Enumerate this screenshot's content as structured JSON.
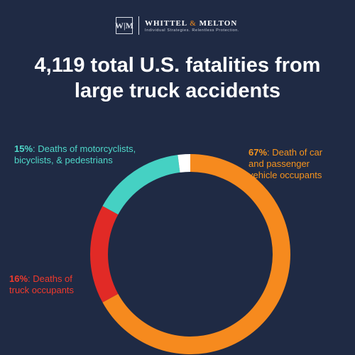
{
  "logo": {
    "mark": "W|M",
    "name_left": "WHITTEL",
    "name_amp": "&",
    "name_right": "MELTON",
    "tagline": "Individual Strategies. Relentless Protection."
  },
  "title_line1": "4,119 total U.S. fatalities from",
  "title_line2": "large truck accidents",
  "chart_data": {
    "type": "pie",
    "title": "4,119 total U.S. fatalities from large truck accidents",
    "total": 4119,
    "unit": "%",
    "donut": true,
    "slices": [
      {
        "label": "Death of car and passenger vehicle occupants",
        "value": 67,
        "color": "#f68a1e"
      },
      {
        "label": "Deaths of truck occupants",
        "value": 16,
        "color": "#e12a26"
      },
      {
        "label": "Deaths of motorcyclists, bicyclists, & pedestrians",
        "value": 15,
        "color": "#45d1c3"
      },
      {
        "label": "",
        "value": 2,
        "color": "#ffffff"
      }
    ]
  },
  "labels": {
    "moto": {
      "pct": "15%",
      "text_line1": ": Deaths of motorcyclists,",
      "text_line2": "bicyclists, & pedestrians"
    },
    "car": {
      "pct": "67%",
      "text_line1": ": Death of car",
      "text_line2": "and passenger",
      "text_line3": "vehicle occupants"
    },
    "truck": {
      "pct": "16%",
      "text_line1": ": Deaths of",
      "text_line2": "truck occupants"
    }
  }
}
